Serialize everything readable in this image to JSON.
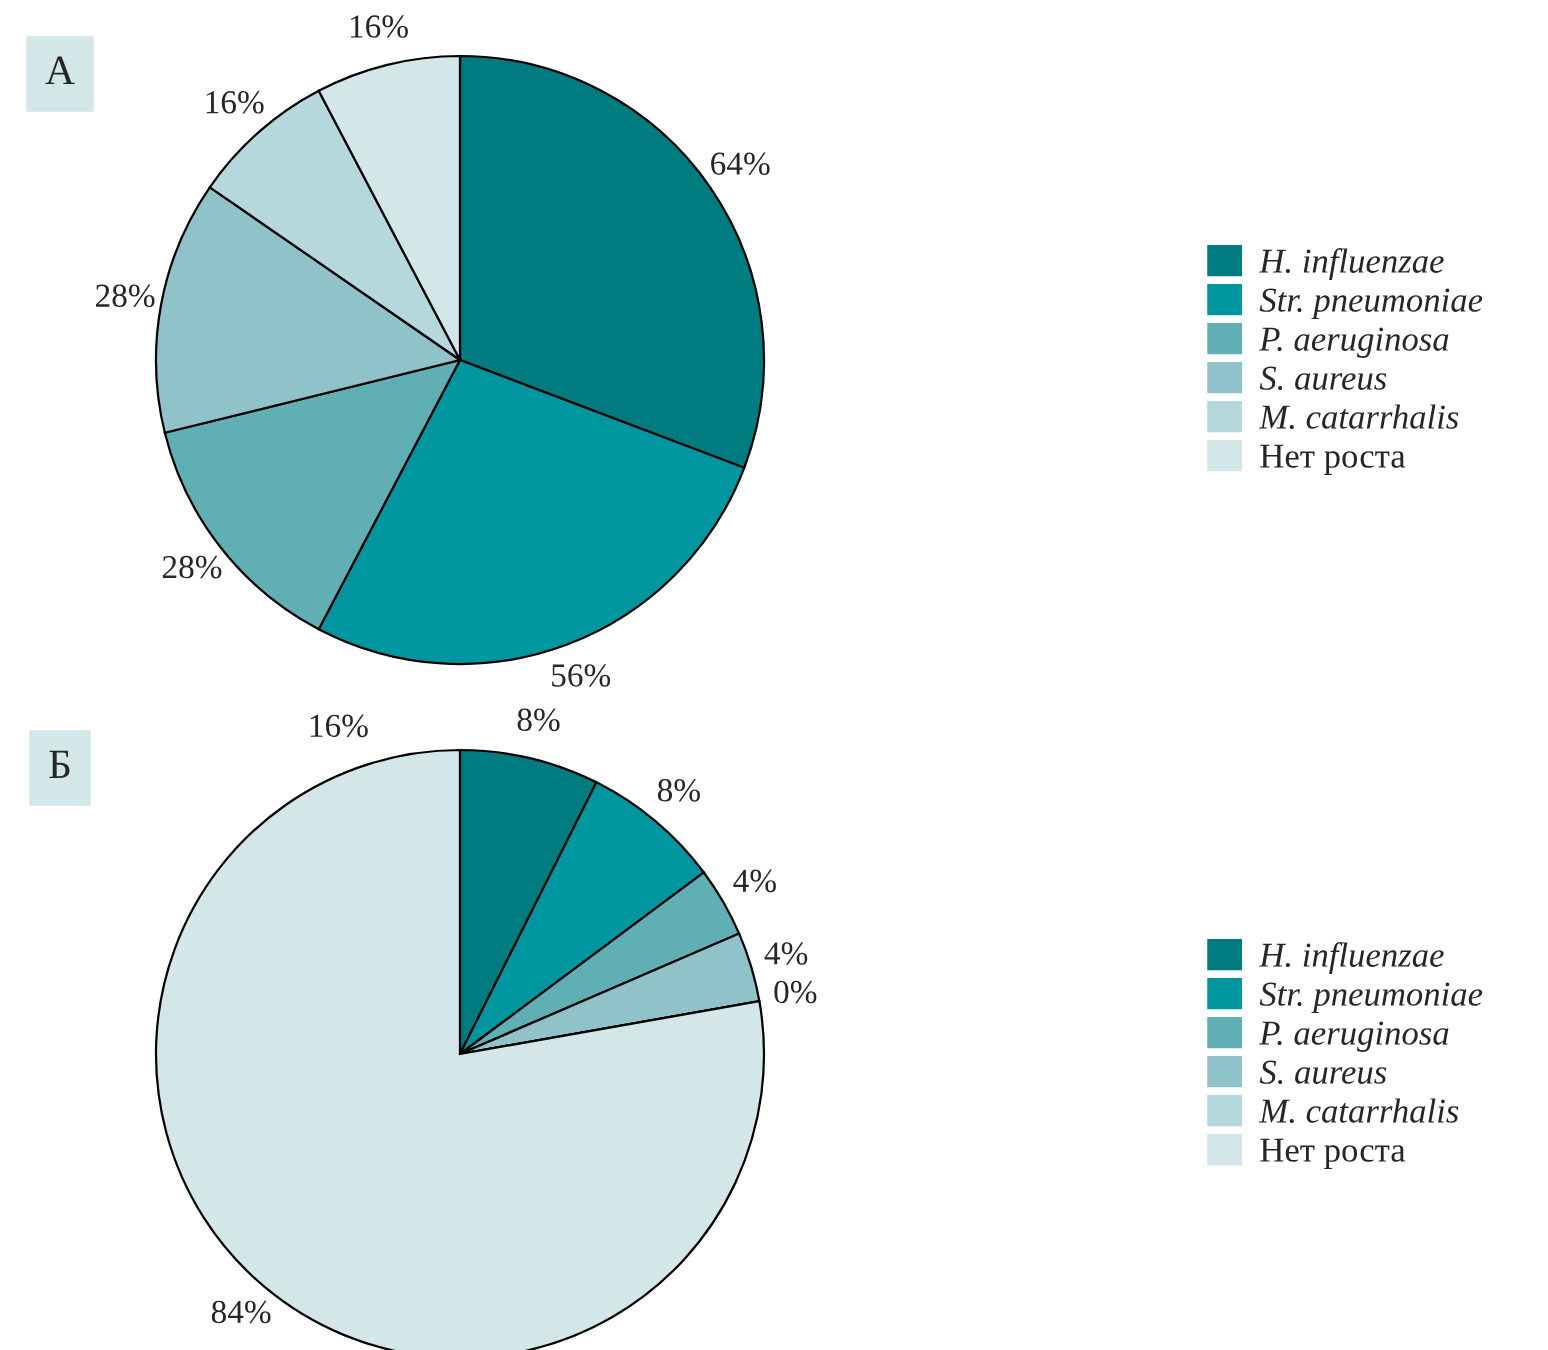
{
  "chart_data": [
    {
      "type": "pie",
      "title": "А",
      "categories": [
        "H. influenzae",
        "Str. pneumoniae",
        "P. aeruginosa",
        "S. aureus",
        "M. catarrhalis",
        "Нет роста"
      ],
      "values": [
        64,
        56,
        28,
        28,
        16,
        16
      ],
      "value_labels": [
        "64%",
        "56%",
        "28%",
        "28%",
        "16%",
        "16%"
      ],
      "colors": [
        "#007b80",
        "#0096a0",
        "#5fafb5",
        "#8fc3c9",
        "#b5d8dc",
        "#d3e6e8"
      ],
      "legend": "right"
    },
    {
      "type": "pie",
      "title": "Б",
      "categories": [
        "H. influenzae",
        "Str. pneumoniae",
        "P. aeruginosa",
        "S. aureus",
        "M. catarrhalis",
        "Нет роста"
      ],
      "values": [
        8,
        8,
        4,
        4,
        0,
        84
      ],
      "value_labels": [
        "8%",
        "8%",
        "4%",
        "4%",
        "0%",
        "84%"
      ],
      "colors": [
        "#007b80",
        "#0096a0",
        "#5fafb5",
        "#8fc3c9",
        "#b5d8dc",
        "#d3e6e8"
      ],
      "legend": "right",
      "annotations": [
        "16%"
      ]
    }
  ]
}
